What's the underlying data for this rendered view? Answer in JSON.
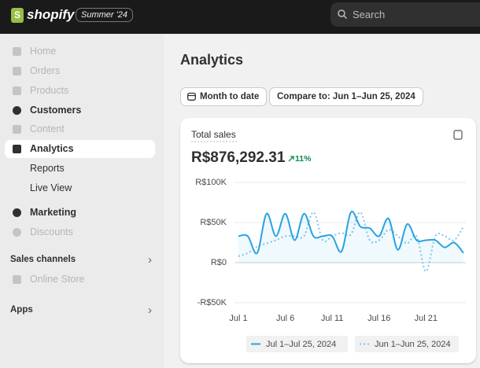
{
  "header": {
    "logo": "shopify",
    "badge": "Summer '24",
    "search": "Search"
  },
  "nav": [
    "Home",
    "Orders",
    "Products",
    "Customers",
    "Content",
    "Analytics",
    "Reports",
    "Live View",
    "Marketing",
    "Discounts"
  ],
  "sales_channels": {
    "title": "Sales channels",
    "items": [
      "Online Store"
    ]
  },
  "apps": {
    "title": "Apps"
  },
  "page": {
    "title": "Analytics",
    "filters": [
      "Month to date",
      "Compare to: Jun 1–Jun 25, 2024"
    ]
  },
  "chart_data": {
    "type": "line",
    "title": "Total sales",
    "total": "R$876,292.31",
    "change": "11%",
    "categories": [
      "Jul 1",
      null,
      null,
      null,
      null,
      "Jul 6",
      null,
      null,
      null,
      null,
      "Jul 11",
      null,
      null,
      null,
      null,
      "Jul 16",
      null,
      null,
      null,
      null,
      "Jul 21",
      null,
      null,
      null,
      null
    ],
    "series": [
      {
        "name": "Jul 1–Jul 25, 2024",
        "color": "#29a3e0",
        "style": "solid",
        "values": [
          33000,
          33000,
          12000,
          61000,
          33000,
          61000,
          28000,
          61000,
          33000,
          33000,
          33000,
          14000,
          63000,
          45000,
          43000,
          33000,
          55000,
          16000,
          48000,
          28000,
          28000,
          28000,
          19000,
          25000,
          12000
        ]
      },
      {
        "name": "Jun 1–Jun 25, 2024",
        "color": "#7fc6ea",
        "style": "dotted",
        "values": [
          8000,
          12000,
          20000,
          24000,
          28000,
          33000,
          33000,
          33000,
          63000,
          28000,
          33000,
          37000,
          35000,
          63000,
          28000,
          28000,
          41000,
          33000,
          24000,
          33000,
          -11000,
          33000,
          33000,
          28000,
          45000
        ]
      }
    ],
    "ylim": [
      -50000,
      100000
    ],
    "yticks": [
      {
        "value": -50000,
        "label": "-R$50K"
      },
      {
        "value": 0,
        "label": "R$0"
      },
      {
        "value": 50000,
        "label": "R$50K"
      },
      {
        "value": 100000,
        "label": "R$100K"
      }
    ],
    "grid": true
  }
}
